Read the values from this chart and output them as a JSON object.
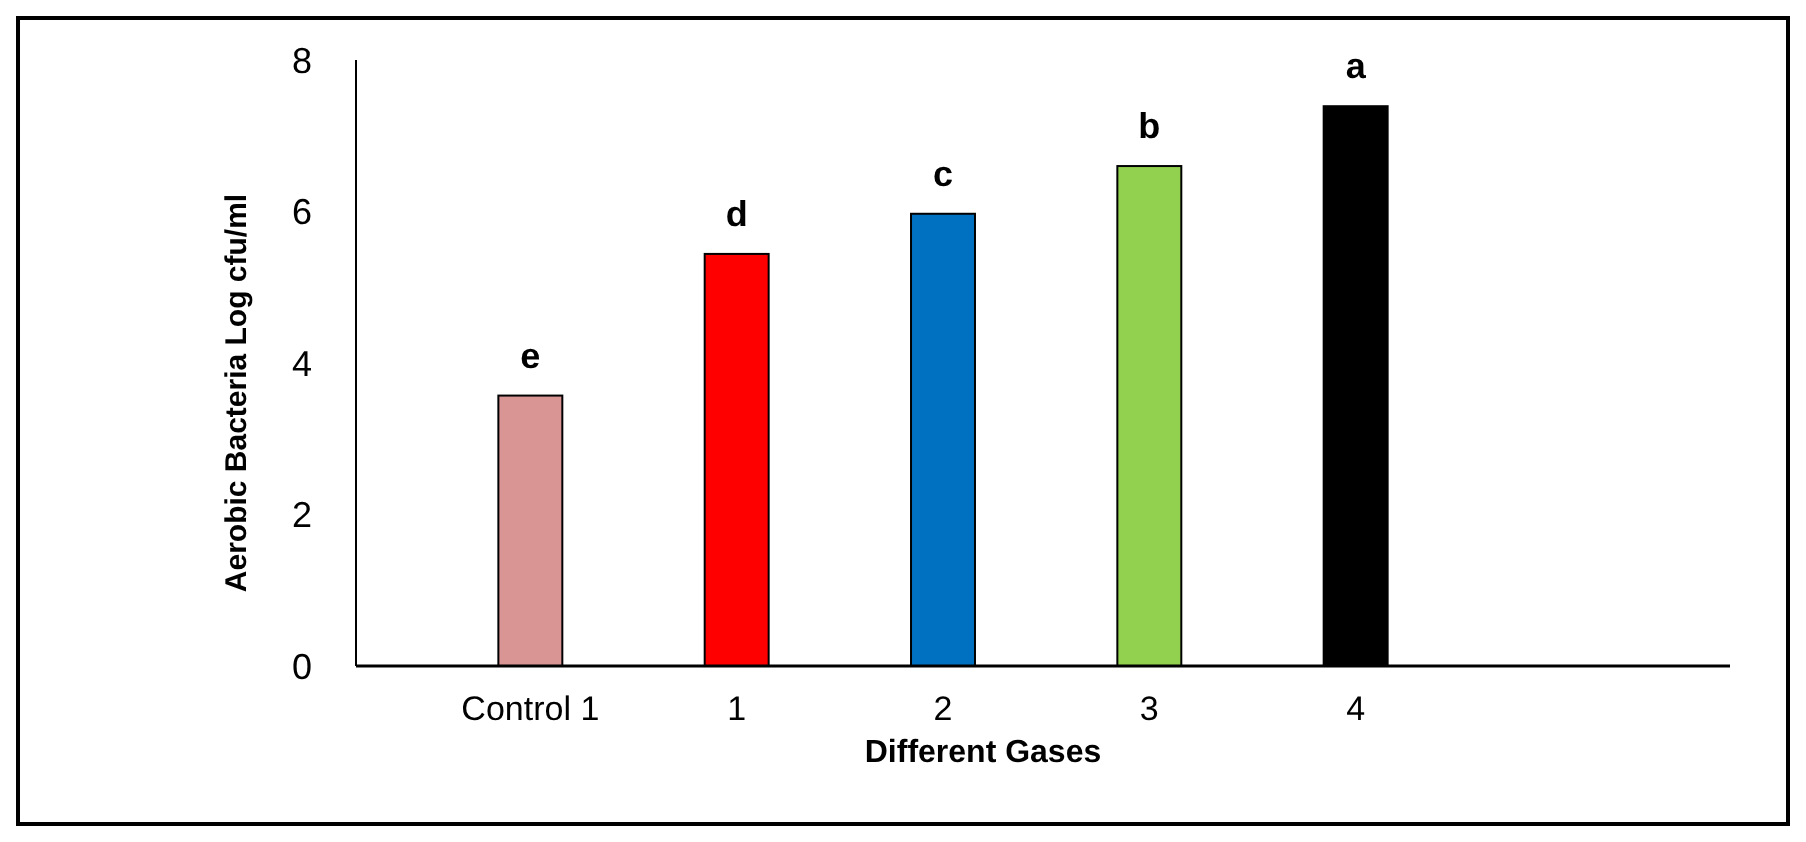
{
  "chart_data": {
    "type": "bar",
    "xlabel": "Different Gases",
    "ylabel": "Aerobic Bacteria Log cfu/ml",
    "categories": [
      "Control 1",
      "1",
      "2",
      "3",
      "4"
    ],
    "values": [
      3.57,
      5.44,
      5.97,
      6.6,
      7.39
    ],
    "colors": [
      "#d99594",
      "#ff0000",
      "#0070c0",
      "#92d050",
      "#000000"
    ],
    "ylim": [
      0,
      8
    ],
    "yticks": [
      0,
      2,
      4,
      6,
      8
    ],
    "grid": false,
    "annotations": [
      {
        "text": "e",
        "x": "Control 1",
        "y": 3.57
      },
      {
        "text": "d",
        "x": "1",
        "y": 5.44
      },
      {
        "text": "c",
        "x": "2",
        "y": 5.97
      },
      {
        "text": "b",
        "x": "3",
        "y": 6.6
      },
      {
        "text": "a",
        "x": "4",
        "y": 7.39
      }
    ]
  }
}
